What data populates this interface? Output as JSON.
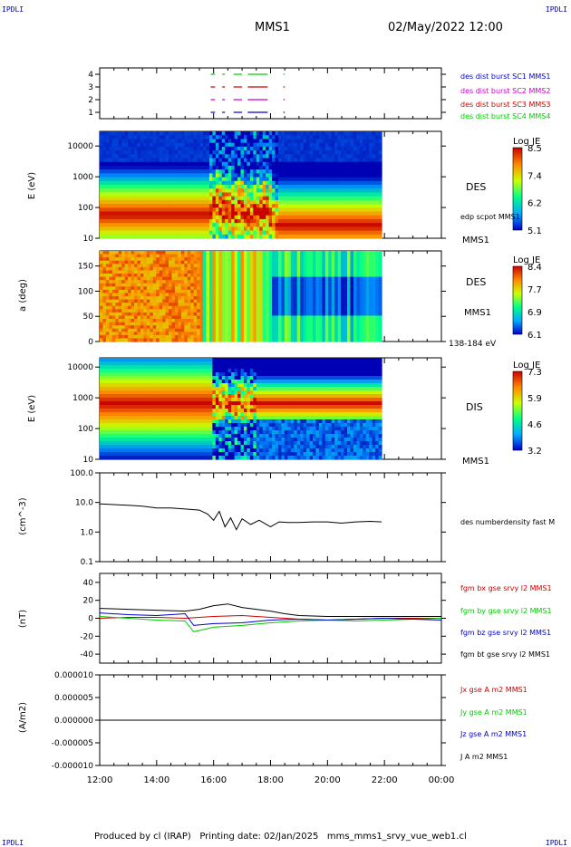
{
  "header": {
    "corner_left": "IPDLI",
    "corner_right": "IPDLI",
    "title": "MMS1",
    "datetime": "02/May/2022 12:00"
  },
  "footer": {
    "text": "Produced by cl (IRAP)   Printing date: 02/Jan/2025   mms_mms1_srvy_vue_web1.cl",
    "corner_left": "IPDLI",
    "corner_right": "IPDLI"
  },
  "colors": {
    "red": "#cc0000",
    "green": "#00cc00",
    "blue": "#0000cc",
    "magenta": "#cc00cc",
    "black": "#000000"
  },
  "chart_data": [
    {
      "type": "line",
      "name": "burst-availability",
      "yticks": [
        "4",
        "3",
        "2",
        "1"
      ],
      "ylim": [
        0.5,
        4.5
      ],
      "legend": [
        {
          "label": "des dist burst SC1 MMS1",
          "color": "#0000cc",
          "y": 1
        },
        {
          "label": "des dist burst SC2 MMS2",
          "color": "#cc00cc",
          "y": 2
        },
        {
          "label": "des dist burst SC3 MMS3",
          "color": "#cc0000",
          "y": 3
        },
        {
          "label": "des dist burst SC4 MMS4",
          "color": "#00cc00",
          "y": 4
        }
      ],
      "burst_intervals_hours": [
        [
          15.9,
          16.05
        ],
        [
          16.3,
          16.4
        ],
        [
          16.7,
          17.0
        ],
        [
          17.2,
          17.9
        ],
        [
          18.45,
          18.5
        ]
      ]
    },
    {
      "type": "heatmap",
      "name": "des-energy-spectrogram",
      "ylabel": "E (eV)",
      "yscale": "log",
      "ylim": [
        10,
        30000
      ],
      "yticks": [
        "10000",
        "1000",
        "100",
        "10"
      ],
      "label": "DES",
      "instrument": "MMS1",
      "overlay": "edp scpot MMS1",
      "colorbar": {
        "title": "Log JE",
        "ticks": [
          "8.5",
          "7.4",
          "6.2",
          "5.1"
        ]
      }
    },
    {
      "type": "heatmap",
      "name": "des-pitch-angle",
      "ylabel": "a (deg)",
      "ylim": [
        0,
        180
      ],
      "yticks": [
        "150",
        "100",
        "50",
        "0"
      ],
      "label": "DES",
      "instrument": "MMS1",
      "energy_band": "138-184 eV",
      "colorbar": {
        "title": "Log JE",
        "ticks": [
          "8.4",
          "7.7",
          "6.9",
          "6.1"
        ]
      }
    },
    {
      "type": "heatmap",
      "name": "dis-energy-spectrogram",
      "ylabel": "E (eV)",
      "yscale": "log",
      "ylim": [
        10,
        20000
      ],
      "yticks": [
        "10000",
        "1000",
        "100",
        "10"
      ],
      "label": "DIS",
      "instrument": "MMS1",
      "colorbar": {
        "title": "Log JE",
        "ticks": [
          "7.3",
          "5.9",
          "4.6",
          "3.2"
        ]
      }
    },
    {
      "type": "line",
      "name": "des-density",
      "ylabel": "(cm^-3)",
      "yscale": "log",
      "ylim": [
        0.1,
        100
      ],
      "yticks": [
        "100.0",
        "10.0",
        "1.0",
        "0.1"
      ],
      "series": [
        {
          "name": "des numberdensity fast M",
          "color": "#000000",
          "x": [
            12.0,
            12.5,
            13.0,
            13.5,
            14.0,
            14.5,
            15.0,
            15.5,
            15.8,
            16.0,
            16.2,
            16.4,
            16.6,
            16.8,
            17.0,
            17.3,
            17.6,
            18.0,
            18.3,
            18.6,
            19.0,
            19.5,
            20.0,
            20.5,
            21.0,
            21.5,
            21.9
          ],
          "y": [
            9.0,
            8.5,
            8.0,
            7.5,
            6.5,
            6.5,
            6.0,
            5.5,
            4.0,
            2.5,
            5.0,
            1.5,
            3.0,
            1.2,
            2.8,
            1.8,
            2.5,
            1.5,
            2.2,
            2.1,
            2.1,
            2.2,
            2.2,
            2.0,
            2.2,
            2.3,
            2.2
          ]
        }
      ]
    },
    {
      "type": "line",
      "name": "fgm-magnetic-field",
      "ylabel": "(nT)",
      "ylim": [
        -50,
        50
      ],
      "yticks": [
        "40",
        "20",
        "0",
        "-20",
        "-40"
      ],
      "series": [
        {
          "name": "fgm bx gse srvy l2 MMS1",
          "color": "#cc0000",
          "x": [
            12,
            13,
            14,
            15,
            16,
            17,
            18,
            19,
            20,
            21,
            22,
            23,
            24
          ],
          "y": [
            0,
            1,
            1,
            0,
            2,
            3,
            1,
            -1,
            -2,
            -1,
            0,
            0,
            0
          ]
        },
        {
          "name": "fgm by gse srvy l2 MMS1",
          "color": "#00cc00",
          "x": [
            12,
            13,
            14,
            15,
            15.3,
            16,
            17,
            18,
            19,
            20,
            21,
            22,
            23,
            24
          ],
          "y": [
            2,
            0,
            -2,
            -3,
            -15,
            -10,
            -8,
            -5,
            -3,
            -2,
            -3,
            -2,
            -1,
            0
          ]
        },
        {
          "name": "fgm bz gse srvy l2 MMS1",
          "color": "#0000cc",
          "x": [
            12,
            13,
            14,
            15,
            15.3,
            16,
            17,
            18,
            19,
            20,
            21,
            22,
            23,
            24
          ],
          "y": [
            6,
            4,
            3,
            5,
            -8,
            -6,
            -5,
            -2,
            -1,
            -2,
            -1,
            0,
            -1,
            -2
          ]
        },
        {
          "name": "fgm bt gse srvy l2 MMS1",
          "color": "#000000",
          "x": [
            12,
            13,
            14,
            15,
            15.5,
            16,
            16.5,
            17,
            17.5,
            18,
            18.5,
            19,
            20,
            21,
            22,
            23,
            24
          ],
          "y": [
            11,
            10,
            9,
            8,
            10,
            14,
            16,
            12,
            10,
            8,
            5,
            3,
            2,
            2,
            2,
            2,
            2
          ]
        }
      ]
    },
    {
      "type": "line",
      "name": "current-density",
      "ylabel": "(A/m2)",
      "ylim": [
        -0.0001,
        0.0001
      ],
      "yticks": [
        "0.000010",
        "0.000005",
        "0.000000",
        "-0.000005",
        "-0.000010"
      ],
      "series": [
        {
          "name": "Jx gse A m2 MMS1",
          "color": "#cc0000",
          "x": [
            12,
            24
          ],
          "y": [
            0,
            0
          ]
        },
        {
          "name": "Jy gse A m2 MMS1",
          "color": "#00cc00",
          "x": [
            12,
            24
          ],
          "y": [
            0,
            0
          ]
        },
        {
          "name": "Jz gse A m2 MMS1",
          "color": "#0000cc",
          "x": [
            12,
            24
          ],
          "y": [
            0,
            0
          ]
        },
        {
          "name": "J A m2 MMS1",
          "color": "#000000",
          "x": [
            12,
            24
          ],
          "y": [
            0,
            0
          ]
        }
      ]
    }
  ],
  "xaxis": {
    "ticks": [
      "12:00",
      "14:00",
      "16:00",
      "18:00",
      "20:00",
      "22:00",
      "00:00"
    ],
    "xlim_hours": [
      12,
      24
    ],
    "data_end_hours": 21.9
  }
}
